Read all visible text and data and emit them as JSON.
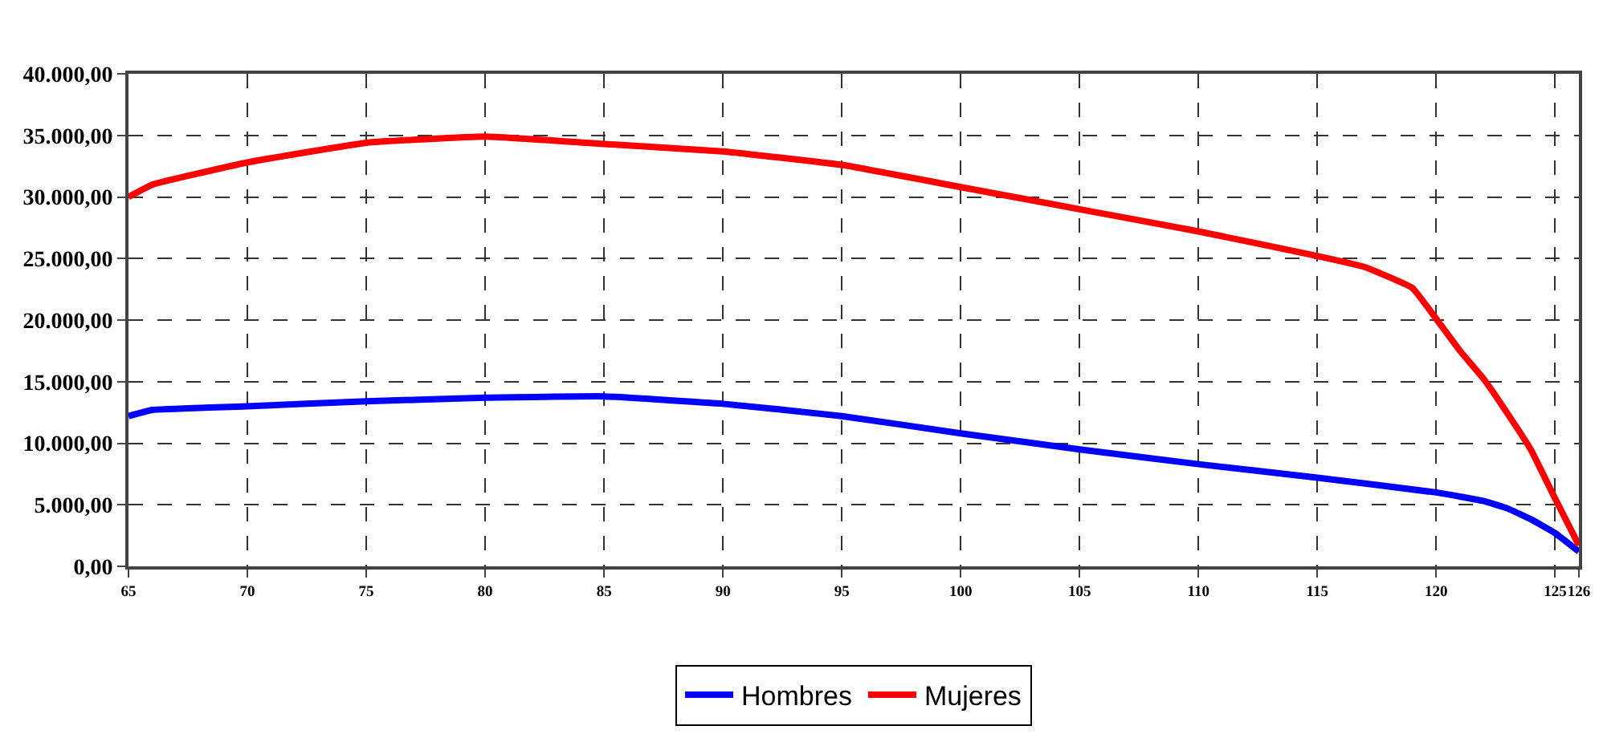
{
  "chart_data": {
    "type": "line",
    "x": [
      65,
      66,
      70,
      75,
      80,
      85,
      90,
      95,
      100,
      105,
      110,
      115,
      117,
      119,
      120,
      121,
      122,
      123,
      124,
      125,
      126
    ],
    "series": [
      {
        "name": "Hombres",
        "color": "#0000ff",
        "x": [
          65,
          66,
          70,
          75,
          80,
          85,
          90,
          95,
          100,
          105,
          110,
          115,
          120,
          122,
          123,
          124,
          125,
          126
        ],
        "values": [
          12200,
          12700,
          13000,
          13400,
          13700,
          13800,
          13200,
          12200,
          10800,
          9500,
          8300,
          7200,
          6000,
          5300,
          4700,
          3800,
          2700,
          1200
        ]
      },
      {
        "name": "Mujeres",
        "color": "#ff0000",
        "values": [
          30000,
          31000,
          32800,
          34400,
          34900,
          34300,
          33700,
          32600,
          30800,
          29000,
          27200,
          25200,
          24300,
          22600,
          20100,
          17500,
          15200,
          12400,
          9400,
          5500,
          1700
        ]
      }
    ],
    "xlim": [
      65,
      126
    ],
    "xticks": [
      65,
      70,
      75,
      80,
      85,
      90,
      95,
      100,
      105,
      110,
      115,
      120,
      125,
      126
    ],
    "ylim": [
      0,
      40000
    ],
    "yticks": [
      {
        "value": 0,
        "label": "0,00"
      },
      {
        "value": 5000,
        "label": "5.000,00"
      },
      {
        "value": 10000,
        "label": "10.000,00"
      },
      {
        "value": 15000,
        "label": "15.000,00"
      },
      {
        "value": 20000,
        "label": "20.000,00"
      },
      {
        "value": 25000,
        "label": "25.000,00"
      },
      {
        "value": 30000,
        "label": "30.000,00"
      },
      {
        "value": 35000,
        "label": "35.000,00"
      },
      {
        "value": 40000,
        "label": "40.000,00"
      }
    ],
    "grid": true,
    "legend": "bottom",
    "marker": "none",
    "line_style": "solid"
  }
}
